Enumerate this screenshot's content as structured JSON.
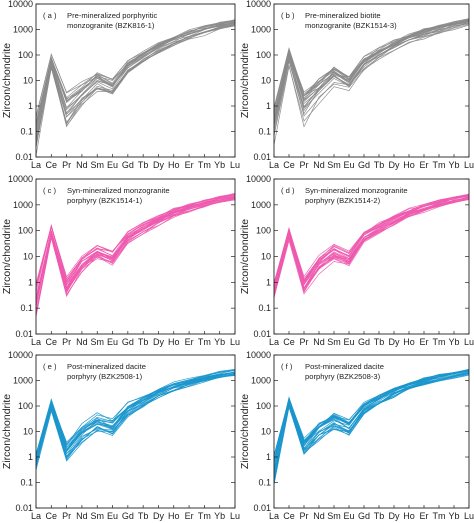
{
  "chart_data": {
    "type": "line",
    "y_scale": "log",
    "ylim": [
      0.01,
      10000
    ],
    "y_ticks": [
      "0.01",
      "0.1",
      "1",
      "10",
      "100",
      "1000",
      "10000"
    ],
    "ylabel": "Zircon/chondrite",
    "categories": [
      "La",
      "Ce",
      "Pr",
      "Nd",
      "Sm",
      "Eu",
      "Gd",
      "Tb",
      "Dy",
      "Ho",
      "Er",
      "Tm",
      "Yb",
      "Lu"
    ],
    "panels": [
      {
        "label": "( a )",
        "title_lines": [
          "Pre-mineralized porphyritic",
          "monzogranite (BZK816-1)"
        ],
        "color": "#8a8a8a",
        "spread_low": [
          0.01,
          20,
          0.07,
          0.7,
          3,
          2,
          15,
          40,
          100,
          200,
          350,
          550,
          900,
          1300
        ],
        "spread_high": [
          0.5,
          140,
          5,
          10,
          25,
          13,
          70,
          160,
          350,
          650,
          1000,
          1500,
          2100,
          2600
        ],
        "line_count": 22
      },
      {
        "label": "( b )",
        "title_lines": [
          "Pre-mineralized biotite",
          "monzogranite (BZK1514-3)"
        ],
        "color": "#8a8a8a",
        "spread_low": [
          0.02,
          30,
          0.1,
          1,
          5,
          3,
          20,
          50,
          120,
          250,
          400,
          600,
          950,
          1300
        ],
        "spread_high": [
          1,
          200,
          6,
          15,
          40,
          18,
          90,
          200,
          400,
          700,
          1100,
          1600,
          2200,
          2800
        ],
        "line_count": 22
      },
      {
        "label": "( c )",
        "title_lines": [
          "Syn-mineralized monzogranite",
          "porphyry (BZK1514-1)"
        ],
        "color": "#ee5aae",
        "spread_low": [
          0.03,
          40,
          0.25,
          2,
          7,
          4,
          30,
          70,
          150,
          300,
          500,
          750,
          1100,
          1500
        ],
        "spread_high": [
          1,
          180,
          1.8,
          12,
          30,
          18,
          100,
          230,
          450,
          800,
          1200,
          1700,
          2300,
          2900
        ],
        "line_count": 24
      },
      {
        "label": "( d )",
        "title_lines": [
          "Syn-mineralized monzogranite",
          "porphyry (BZK1514-2)"
        ],
        "color": "#ee5aae",
        "spread_low": [
          0.2,
          40,
          0.3,
          2,
          6,
          4,
          30,
          70,
          150,
          300,
          500,
          750,
          1100,
          1500
        ],
        "spread_high": [
          1.5,
          160,
          2,
          15,
          35,
          18,
          110,
          250,
          450,
          800,
          1200,
          1700,
          2300,
          2900
        ],
        "line_count": 24
      },
      {
        "label": "( e )",
        "title_lines": [
          "Post-mineralized dacite",
          "porphyry (BZK2508-1)"
        ],
        "color": "#1a96cc",
        "spread_low": [
          0.3,
          60,
          0.6,
          3,
          8,
          6,
          35,
          80,
          180,
          350,
          550,
          800,
          1150,
          1500
        ],
        "spread_high": [
          1.5,
          200,
          5,
          25,
          60,
          35,
          150,
          300,
          550,
          900,
          1300,
          1800,
          2400,
          3000
        ],
        "line_count": 22
      },
      {
        "label": "( f )",
        "title_lines": [
          "Post-mineralized dacite",
          "porphyry (BZK2508-3)"
        ],
        "color": "#1a96cc",
        "spread_low": [
          0.05,
          80,
          1,
          4,
          10,
          6,
          40,
          90,
          200,
          380,
          600,
          850,
          1200,
          1600
        ],
        "spread_high": [
          2,
          250,
          6,
          30,
          70,
          35,
          160,
          320,
          600,
          950,
          1400,
          1900,
          2500,
          3100
        ],
        "line_count": 26
      }
    ]
  }
}
